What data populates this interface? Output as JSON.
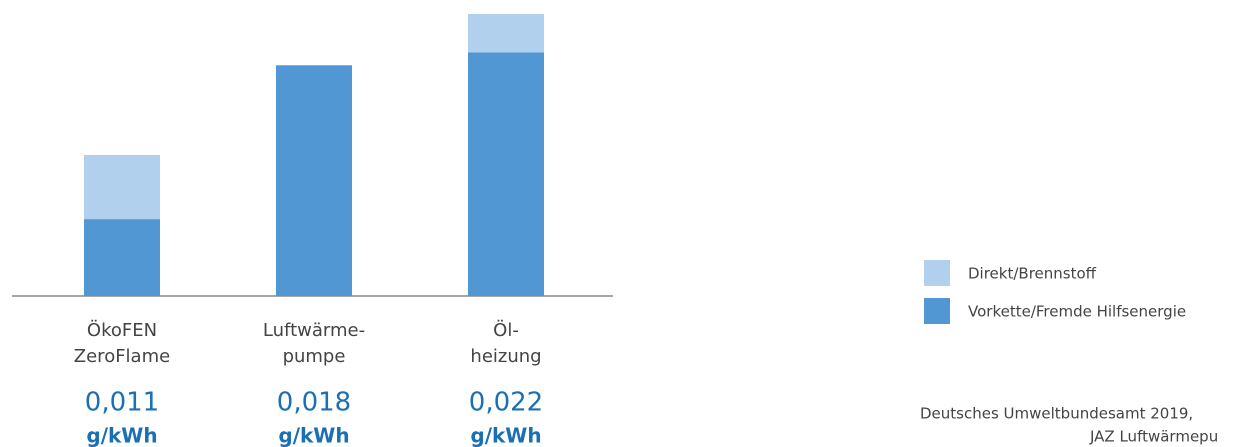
{
  "chart_data": {
    "type": "stacked-bar",
    "categories": [
      [
        "ÖkoFEN",
        "ZeroFlame"
      ],
      [
        "Luftwärme-",
        "pumpe"
      ],
      [
        "Öl-",
        "heizung"
      ]
    ],
    "series": [
      {
        "name": "Vorkette/Fremde Hilfsenergie",
        "color": "#5097d3",
        "values": [
          0.006,
          0.018,
          0.019
        ]
      },
      {
        "name": "Direkt/Brennstoff",
        "color": "#b0d0ee",
        "values": [
          0.005,
          0,
          0.003
        ]
      }
    ],
    "totals": {
      "values": [
        0.011,
        0.018,
        0.022
      ],
      "value_labels": [
        "0,011",
        "0,018",
        "0,022"
      ]
    },
    "unit": "g/kWh",
    "source": [
      "Deutsches Umweltbundesamt 2019,",
      "JAZ Luftwärmepu"
    ]
  }
}
